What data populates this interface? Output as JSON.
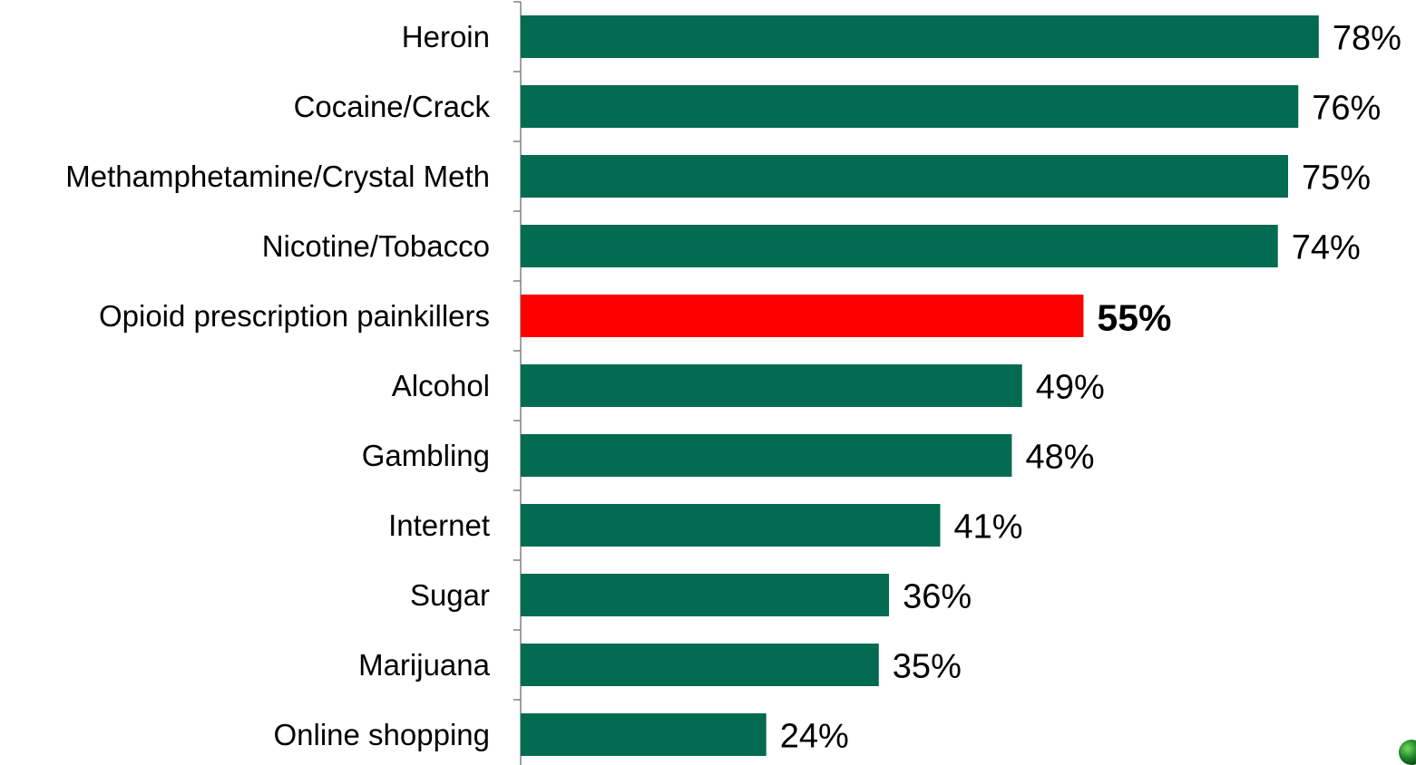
{
  "chart_data": {
    "type": "bar",
    "orientation": "horizontal",
    "categories": [
      "Heroin",
      "Cocaine/Crack",
      "Methamphetamine/Crystal Meth",
      "Nicotine/Tobacco",
      "Opioid prescription painkillers",
      "Alcohol",
      "Gambling",
      "Internet",
      "Sugar",
      "Marijuana",
      "Online shopping"
    ],
    "values": [
      78,
      76,
      75,
      74,
      55,
      49,
      48,
      41,
      36,
      35,
      24
    ],
    "value_labels": [
      "78%",
      "76%",
      "75%",
      "74%",
      "55%",
      "49%",
      "48%",
      "41%",
      "36%",
      "35%",
      "24%"
    ],
    "highlight_index": 4,
    "colors": {
      "bar": "#036b51",
      "highlight": "#ff0000",
      "axis": "#808080",
      "text": "#000000"
    },
    "xlim": [
      0,
      80
    ],
    "grid": false,
    "legend": "none",
    "title": "",
    "xlabel": "",
    "ylabel": ""
  },
  "decoration": {
    "corner_icon": "green-sphere-icon"
  }
}
